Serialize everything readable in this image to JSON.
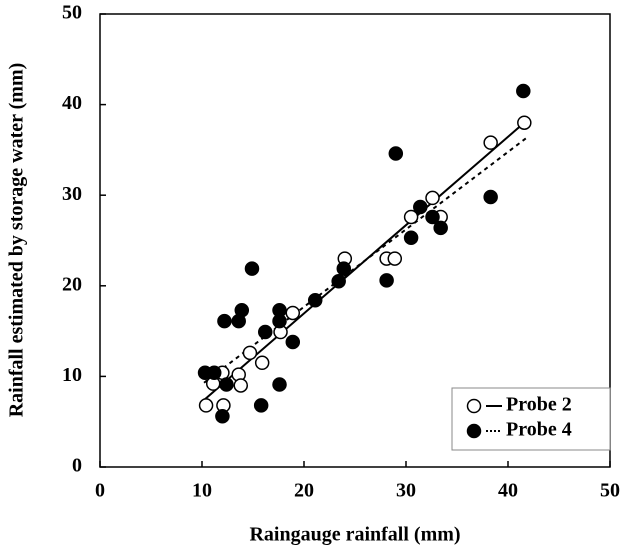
{
  "chart_data": {
    "type": "scatter",
    "xlabel": "Raingauge rainfall (mm)",
    "ylabel": "Rainfall estimated by storage water (mm)",
    "xlim": [
      0,
      50
    ],
    "ylim": [
      0,
      50
    ],
    "xticks": [
      0,
      10,
      20,
      30,
      40,
      50
    ],
    "yticks": [
      0,
      10,
      20,
      30,
      40,
      50
    ],
    "legend": "lower right",
    "series": [
      {
        "name": "Probe 2",
        "color": "#000000",
        "marker": "open",
        "linestyle": "solid",
        "x": [
          10.4,
          11.1,
          12.0,
          12.1,
          13.6,
          13.8,
          14.7,
          15.9,
          17.7,
          18.9,
          24.0,
          28.1,
          28.9,
          30.5,
          32.6,
          33.4,
          38.3,
          41.6
        ],
        "y": [
          6.8,
          9.2,
          10.4,
          6.8,
          10.2,
          9.0,
          12.6,
          11.5,
          14.9,
          17.0,
          23.0,
          23.0,
          23.0,
          27.6,
          29.7,
          27.6,
          35.8,
          38.0
        ],
        "trend_x": [
          10.2,
          41.9
        ],
        "trend_y": [
          7.4,
          38.3
        ]
      },
      {
        "name": "Probe 4",
        "color": "#000000",
        "marker": "filled",
        "linestyle": "dotted",
        "x": [
          10.3,
          11.2,
          12.0,
          12.2,
          12.4,
          13.6,
          13.9,
          14.9,
          15.8,
          16.2,
          17.6,
          17.6,
          17.6,
          18.9,
          21.1,
          23.4,
          23.9,
          28.1,
          29.0,
          30.5,
          31.4,
          32.6,
          33.4,
          38.3,
          41.5
        ],
        "y": [
          10.4,
          10.4,
          5.6,
          16.1,
          9.1,
          16.1,
          17.3,
          21.9,
          6.8,
          14.9,
          17.3,
          16.1,
          9.1,
          13.8,
          18.4,
          20.5,
          21.9,
          20.6,
          34.6,
          25.3,
          28.7,
          27.6,
          26.4,
          29.8,
          41.5
        ],
        "trend_x": [
          10.2,
          41.9
        ],
        "trend_y": [
          9.3,
          36.4
        ]
      }
    ]
  }
}
